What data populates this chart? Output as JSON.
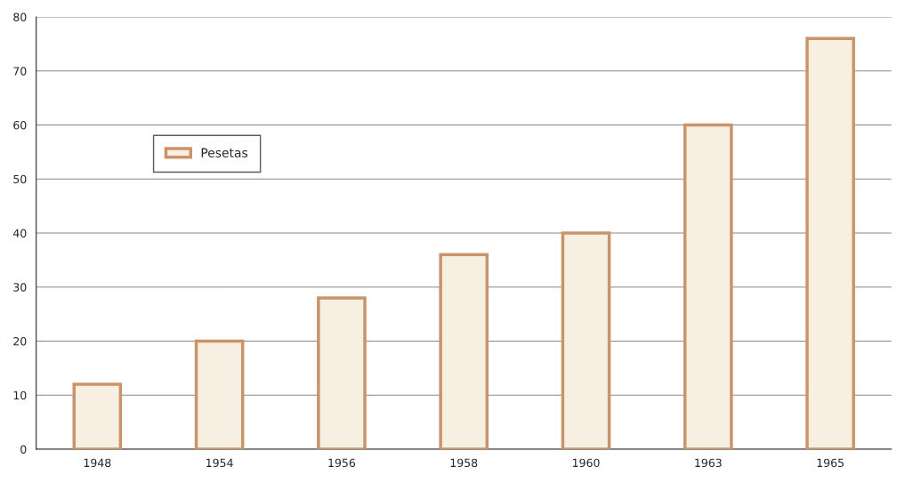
{
  "chart_data": {
    "type": "bar",
    "categories": [
      "1948",
      "1954",
      "1956",
      "1958",
      "1960",
      "1963",
      "1965"
    ],
    "series": [
      {
        "name": "Pesetas",
        "color": "#f6efe2",
        "values": [
          12,
          20,
          28,
          36,
          40,
          60,
          76
        ]
      }
    ],
    "ylim": [
      0,
      80
    ],
    "yticks": [
      0,
      10,
      20,
      30,
      40,
      50,
      60,
      70,
      80
    ],
    "grid": "y",
    "legend": "top left"
  }
}
